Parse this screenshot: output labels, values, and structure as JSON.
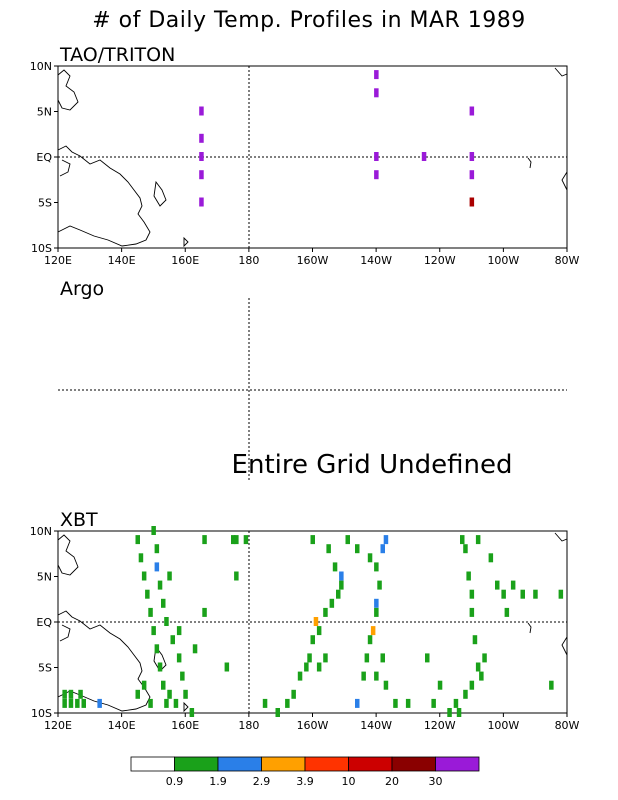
{
  "title": "# of Daily Temp. Profiles in MAR 1989",
  "colors": {
    "green": "#1aa11a",
    "blue": "#2a7fe8",
    "orange": "#ffa000",
    "red": "#aa0000",
    "purple": "#9a1ad8"
  },
  "chart_data": [
    {
      "type": "heatmap",
      "panel": "TAO/TRITON",
      "title": "TAO/TRITON",
      "x_ticks": [
        "120E",
        "140E",
        "160E",
        "180",
        "160W",
        "140W",
        "120W",
        "100W",
        "80W"
      ],
      "y_ticks": [
        "10N",
        "5N",
        "EQ",
        "5S",
        "10S"
      ],
      "xlim": [
        120,
        280
      ],
      "ylim": [
        -10,
        10
      ],
      "cells": [
        {
          "lon": 165,
          "lat": 5,
          "color": "purple"
        },
        {
          "lon": 165,
          "lat": 2,
          "color": "purple"
        },
        {
          "lon": 165,
          "lat": 0,
          "color": "purple"
        },
        {
          "lon": 165,
          "lat": -2,
          "color": "purple"
        },
        {
          "lon": 165,
          "lat": -5,
          "color": "purple"
        },
        {
          "lon": 220,
          "lat": 9,
          "color": "purple"
        },
        {
          "lon": 220,
          "lat": 7,
          "color": "purple"
        },
        {
          "lon": 220,
          "lat": 0,
          "color": "purple"
        },
        {
          "lon": 220,
          "lat": -2,
          "color": "purple"
        },
        {
          "lon": 235,
          "lat": 0,
          "color": "purple"
        },
        {
          "lon": 250,
          "lat": 5,
          "color": "purple"
        },
        {
          "lon": 250,
          "lat": 0,
          "color": "purple"
        },
        {
          "lon": 250,
          "lat": -2,
          "color": "purple"
        },
        {
          "lon": 250,
          "lat": -5,
          "color": "red"
        }
      ]
    },
    {
      "type": "heatmap",
      "panel": "Argo",
      "title": "Argo",
      "message": "Entire Grid Undefined",
      "cells": []
    },
    {
      "type": "heatmap",
      "panel": "XBT",
      "title": "XBT",
      "x_ticks": [
        "120E",
        "140E",
        "160E",
        "180",
        "160W",
        "140W",
        "120W",
        "100W",
        "80W"
      ],
      "y_ticks": [
        "10N",
        "5N",
        "EQ",
        "5S",
        "10S"
      ],
      "xlim": [
        120,
        280
      ],
      "ylim": [
        -10,
        10
      ],
      "cells": [
        {
          "lon": 145,
          "lat": 9,
          "color": "green"
        },
        {
          "lon": 146,
          "lat": 7,
          "color": "green"
        },
        {
          "lon": 147,
          "lat": 5,
          "color": "green"
        },
        {
          "lon": 148,
          "lat": 3,
          "color": "green"
        },
        {
          "lon": 149,
          "lat": 1,
          "color": "green"
        },
        {
          "lon": 150,
          "lat": -1,
          "color": "green"
        },
        {
          "lon": 151,
          "lat": -3,
          "color": "green"
        },
        {
          "lon": 152,
          "lat": -5,
          "color": "green"
        },
        {
          "lon": 153,
          "lat": -7,
          "color": "green"
        },
        {
          "lon": 154,
          "lat": -9,
          "color": "green"
        },
        {
          "lon": 150,
          "lat": 10,
          "color": "green"
        },
        {
          "lon": 151,
          "lat": 8,
          "color": "green"
        },
        {
          "lon": 151,
          "lat": 6,
          "color": "blue"
        },
        {
          "lon": 152,
          "lat": 4,
          "color": "green"
        },
        {
          "lon": 153,
          "lat": 2,
          "color": "green"
        },
        {
          "lon": 154,
          "lat": 0,
          "color": "green"
        },
        {
          "lon": 156,
          "lat": -2,
          "color": "green"
        },
        {
          "lon": 158,
          "lat": -4,
          "color": "green"
        },
        {
          "lon": 159,
          "lat": -6,
          "color": "green"
        },
        {
          "lon": 160,
          "lat": -8,
          "color": "green"
        },
        {
          "lon": 162,
          "lat": -10,
          "color": "green"
        },
        {
          "lon": 155,
          "lat": 5,
          "color": "green"
        },
        {
          "lon": 158,
          "lat": -1,
          "color": "green"
        },
        {
          "lon": 145,
          "lat": -8,
          "color": "green"
        },
        {
          "lon": 147,
          "lat": -7,
          "color": "green"
        },
        {
          "lon": 149,
          "lat": -9,
          "color": "green"
        },
        {
          "lon": 155,
          "lat": -8,
          "color": "green"
        },
        {
          "lon": 157,
          "lat": -9,
          "color": "green"
        },
        {
          "lon": 163,
          "lat": -3,
          "color": "green"
        },
        {
          "lon": 166,
          "lat": 1,
          "color": "green"
        },
        {
          "lon": 166,
          "lat": 9,
          "color": "green"
        },
        {
          "lon": 175,
          "lat": 9,
          "color": "green"
        },
        {
          "lon": 176,
          "lat": 9,
          "color": "green"
        },
        {
          "lon": 179,
          "lat": 9,
          "color": "green"
        },
        {
          "lon": 176,
          "lat": 5,
          "color": "green"
        },
        {
          "lon": 122,
          "lat": -9,
          "color": "green"
        },
        {
          "lon": 124,
          "lat": -9,
          "color": "green"
        },
        {
          "lon": 126,
          "lat": -9,
          "color": "green"
        },
        {
          "lon": 128,
          "lat": -9,
          "color": "green"
        },
        {
          "lon": 122,
          "lat": -8,
          "color": "green"
        },
        {
          "lon": 124,
          "lat": -8,
          "color": "green"
        },
        {
          "lon": 127,
          "lat": -8,
          "color": "green"
        },
        {
          "lon": 133,
          "lat": -9,
          "color": "blue"
        },
        {
          "lon": 173,
          "lat": -5,
          "color": "green"
        },
        {
          "lon": 200,
          "lat": 9,
          "color": "green"
        },
        {
          "lon": 205,
          "lat": 8,
          "color": "green"
        },
        {
          "lon": 207,
          "lat": 6,
          "color": "green"
        },
        {
          "lon": 209,
          "lat": 5,
          "color": "blue"
        },
        {
          "lon": 209,
          "lat": 4,
          "color": "green"
        },
        {
          "lon": 208,
          "lat": 3,
          "color": "green"
        },
        {
          "lon": 206,
          "lat": 2,
          "color": "green"
        },
        {
          "lon": 204,
          "lat": 1,
          "color": "green"
        },
        {
          "lon": 202,
          "lat": -1,
          "color": "green"
        },
        {
          "lon": 201,
          "lat": 0,
          "color": "orange"
        },
        {
          "lon": 200,
          "lat": -2,
          "color": "green"
        },
        {
          "lon": 199,
          "lat": -4,
          "color": "green"
        },
        {
          "lon": 198,
          "lat": -5,
          "color": "green"
        },
        {
          "lon": 196,
          "lat": -6,
          "color": "green"
        },
        {
          "lon": 194,
          "lat": -8,
          "color": "green"
        },
        {
          "lon": 192,
          "lat": -9,
          "color": "green"
        },
        {
          "lon": 189,
          "lat": -10,
          "color": "green"
        },
        {
          "lon": 185,
          "lat": -9,
          "color": "green"
        },
        {
          "lon": 202,
          "lat": -5,
          "color": "green"
        },
        {
          "lon": 204,
          "lat": -4,
          "color": "green"
        },
        {
          "lon": 211,
          "lat": 9,
          "color": "green"
        },
        {
          "lon": 214,
          "lat": 8,
          "color": "green"
        },
        {
          "lon": 218,
          "lat": 7,
          "color": "green"
        },
        {
          "lon": 220,
          "lat": 6,
          "color": "green"
        },
        {
          "lon": 222,
          "lat": 8,
          "color": "blue"
        },
        {
          "lon": 223,
          "lat": 9,
          "color": "blue"
        },
        {
          "lon": 221,
          "lat": 4,
          "color": "green"
        },
        {
          "lon": 220,
          "lat": 2,
          "color": "blue"
        },
        {
          "lon": 220,
          "lat": 1,
          "color": "green"
        },
        {
          "lon": 219,
          "lat": -1,
          "color": "orange"
        },
        {
          "lon": 218,
          "lat": -2,
          "color": "green"
        },
        {
          "lon": 217,
          "lat": -4,
          "color": "green"
        },
        {
          "lon": 216,
          "lat": -6,
          "color": "green"
        },
        {
          "lon": 214,
          "lat": -9,
          "color": "blue"
        },
        {
          "lon": 220,
          "lat": -6,
          "color": "green"
        },
        {
          "lon": 222,
          "lat": -4,
          "color": "green"
        },
        {
          "lon": 223,
          "lat": -7,
          "color": "green"
        },
        {
          "lon": 226,
          "lat": -9,
          "color": "green"
        },
        {
          "lon": 230,
          "lat": -9,
          "color": "green"
        },
        {
          "lon": 238,
          "lat": -9,
          "color": "green"
        },
        {
          "lon": 243,
          "lat": -10,
          "color": "green"
        },
        {
          "lon": 245,
          "lat": -9,
          "color": "green"
        },
        {
          "lon": 248,
          "lat": -8,
          "color": "green"
        },
        {
          "lon": 250,
          "lat": -7,
          "color": "green"
        },
        {
          "lon": 252,
          "lat": -5,
          "color": "green"
        },
        {
          "lon": 254,
          "lat": -4,
          "color": "green"
        },
        {
          "lon": 253,
          "lat": -6,
          "color": "green"
        },
        {
          "lon": 251,
          "lat": -2,
          "color": "green"
        },
        {
          "lon": 250,
          "lat": 1,
          "color": "green"
        },
        {
          "lon": 250,
          "lat": 3,
          "color": "green"
        },
        {
          "lon": 249,
          "lat": 5,
          "color": "green"
        },
        {
          "lon": 248,
          "lat": 8,
          "color": "green"
        },
        {
          "lon": 247,
          "lat": 9,
          "color": "green"
        },
        {
          "lon": 252,
          "lat": 9,
          "color": "green"
        },
        {
          "lon": 256,
          "lat": 7,
          "color": "green"
        },
        {
          "lon": 258,
          "lat": 4,
          "color": "green"
        },
        {
          "lon": 260,
          "lat": 3,
          "color": "green"
        },
        {
          "lon": 261,
          "lat": 1,
          "color": "green"
        },
        {
          "lon": 263,
          "lat": 4,
          "color": "green"
        },
        {
          "lon": 266,
          "lat": 3,
          "color": "green"
        },
        {
          "lon": 270,
          "lat": 3,
          "color": "green"
        },
        {
          "lon": 275,
          "lat": -7,
          "color": "green"
        },
        {
          "lon": 278,
          "lat": 3,
          "color": "green"
        },
        {
          "lon": 246,
          "lat": -10,
          "color": "green"
        },
        {
          "lon": 240,
          "lat": -7,
          "color": "green"
        },
        {
          "lon": 236,
          "lat": -4,
          "color": "green"
        }
      ]
    }
  ],
  "legend": {
    "labels": [
      "0.9",
      "1.9",
      "2.9",
      "3.9",
      "10",
      "20",
      "30"
    ],
    "colors": [
      "#ffffff",
      "#1aa11a",
      "#2a7fe8",
      "#ffa000",
      "#ff3300",
      "#cc0000",
      "#8a0000",
      "#9a1ad8"
    ]
  }
}
